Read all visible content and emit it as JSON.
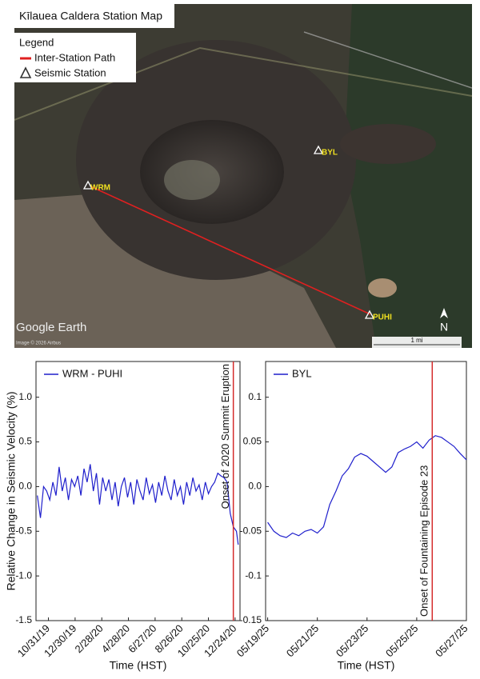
{
  "map": {
    "title": "Kīlauea Caldera Station Map",
    "legend_title": "Legend",
    "legend_items": [
      "Inter-Station Path",
      "Seismic Station"
    ],
    "stations": [
      "WRM",
      "BYL",
      "PUHI"
    ],
    "watermark": "Google Earth",
    "credit": "Image © 2026 Airbus",
    "scale": "1 mi",
    "north": "N"
  },
  "chart_data": [
    {
      "type": "line",
      "ylabel": "Relative Change in Seismic Velocity (%)",
      "xlabel": "Time (HST)",
      "x": [
        "2019-10-06",
        "2019-10-13",
        "2019-10-20",
        "2019-10-27",
        "2019-11-03",
        "2019-11-10",
        "2019-11-17",
        "2019-11-24",
        "2019-12-01",
        "2019-12-08",
        "2019-12-15",
        "2019-12-22",
        "2019-12-29",
        "2020-01-05",
        "2020-01-12",
        "2020-01-19",
        "2020-01-26",
        "2020-02-02",
        "2020-02-09",
        "2020-02-16",
        "2020-02-23",
        "2020-03-01",
        "2020-03-08",
        "2020-03-15",
        "2020-03-22",
        "2020-03-29",
        "2020-04-05",
        "2020-04-12",
        "2020-04-19",
        "2020-04-26",
        "2020-05-03",
        "2020-05-10",
        "2020-05-17",
        "2020-05-24",
        "2020-05-31",
        "2020-06-07",
        "2020-06-14",
        "2020-06-21",
        "2020-06-28",
        "2020-07-05",
        "2020-07-12",
        "2020-07-19",
        "2020-07-26",
        "2020-08-02",
        "2020-08-09",
        "2020-08-16",
        "2020-08-23",
        "2020-08-30",
        "2020-09-06",
        "2020-09-13",
        "2020-09-20",
        "2020-09-27",
        "2020-10-04",
        "2020-10-11",
        "2020-10-18",
        "2020-10-25",
        "2020-11-01",
        "2020-11-08",
        "2020-11-15",
        "2020-11-22",
        "2020-11-29",
        "2020-12-06",
        "2020-12-13",
        "2020-12-20",
        "2020-12-27",
        "2020-12-31"
      ],
      "series": [
        {
          "name": "WRM - PUHI",
          "color": "#1f1fcc",
          "values": [
            -0.1,
            -0.35,
            0,
            -0.05,
            -0.15,
            0.05,
            -0.1,
            0.22,
            -0.05,
            0.1,
            -0.15,
            0.08,
            0,
            0.12,
            -0.1,
            0.2,
            0.05,
            0.25,
            -0.05,
            0.15,
            -0.2,
            0.1,
            -0.05,
            0.08,
            -0.15,
            0.05,
            -0.22,
            0,
            0.1,
            -0.12,
            0.05,
            -0.2,
            0.08,
            -0.05,
            -0.15,
            0.1,
            -0.08,
            0.02,
            -0.18,
            0.05,
            -0.1,
            0.12,
            -0.05,
            -0.15,
            0.08,
            -0.1,
            0,
            -0.2,
            0.05,
            -0.1,
            0.1,
            -0.05,
            0.02,
            -0.15,
            0.05,
            -0.08,
            0,
            0.05,
            0.15,
            0.12,
            0.1,
            0.05,
            -0.3,
            -0.45,
            -0.5,
            -0.65
          ]
        }
      ],
      "xlim": [
        "2019-10-03",
        "2021-01-04"
      ],
      "xticks": [
        {
          "value": "2019-10-31",
          "label": "10/31/19"
        },
        {
          "value": "2019-12-30",
          "label": "12/30/19"
        },
        {
          "value": "2020-02-28",
          "label": "2/28/20"
        },
        {
          "value": "2020-04-28",
          "label": "4/28/20"
        },
        {
          "value": "2020-06-27",
          "label": "6/27/20"
        },
        {
          "value": "2020-08-26",
          "label": "8/26/20"
        },
        {
          "value": "2020-10-25",
          "label": "10/25/20"
        },
        {
          "value": "2020-12-24",
          "label": "12/24/20"
        }
      ],
      "ylim": [
        -1.5,
        1.4
      ],
      "yticks": [
        {
          "value": 1,
          "label": "1.0"
        },
        0.5,
        {
          "value": 0,
          "label": "0.0"
        },
        -0.5,
        {
          "value": -1,
          "label": "-1.0"
        },
        -1.5
      ],
      "annotation": {
        "x": "2020-12-20",
        "text": "Onset of 2020 Summit Eruption",
        "color": "#d42a2a"
      }
    },
    {
      "type": "line",
      "xlabel": "Time (HST)",
      "x": [
        "2025-05-19T00:00",
        "2025-05-19T06:00",
        "2025-05-19T12:00",
        "2025-05-19T18:00",
        "2025-05-20T00:00",
        "2025-05-20T06:00",
        "2025-05-20T12:00",
        "2025-05-20T18:00",
        "2025-05-21T00:00",
        "2025-05-21T06:00",
        "2025-05-21T12:00",
        "2025-05-21T18:00",
        "2025-05-22T00:00",
        "2025-05-22T06:00",
        "2025-05-22T12:00",
        "2025-05-22T18:00",
        "2025-05-23T00:00",
        "2025-05-23T06:00",
        "2025-05-23T12:00",
        "2025-05-23T18:00",
        "2025-05-24T00:00",
        "2025-05-24T06:00",
        "2025-05-24T12:00",
        "2025-05-24T18:00",
        "2025-05-25T00:00",
        "2025-05-25T06:00",
        "2025-05-25T12:00",
        "2025-05-25T18:00",
        "2025-05-26T00:00",
        "2025-05-26T06:00",
        "2025-05-26T12:00",
        "2025-05-26T18:00",
        "2025-05-27T00:00"
      ],
      "series": [
        {
          "name": "BYL",
          "color": "#1f1fcc",
          "values": [
            -0.04,
            -0.05,
            -0.055,
            -0.057,
            -0.052,
            -0.055,
            -0.05,
            -0.048,
            -0.052,
            -0.045,
            -0.02,
            -0.005,
            0.012,
            0.02,
            0.033,
            0.037,
            0.034,
            0.028,
            0.022,
            0.016,
            0.022,
            0.038,
            0.042,
            0.045,
            0.05,
            0.043,
            0.052,
            0.057,
            0.055,
            0.05,
            0.045,
            0.037,
            0.03
          ]
        }
      ],
      "xlim": [
        "2025-05-18T22:00",
        "2025-05-27T00:00"
      ],
      "xticks": [
        {
          "value": "2025-05-19T00:00",
          "label": "05/19/25"
        },
        {
          "value": "2025-05-21T00:00",
          "label": "05/21/25"
        },
        {
          "value": "2025-05-23T00:00",
          "label": "05/23/25"
        },
        {
          "value": "2025-05-25T00:00",
          "label": "05/25/25"
        },
        {
          "value": "2025-05-27T00:00",
          "label": "05/27/25"
        }
      ],
      "ylim": [
        -0.15,
        0.14
      ],
      "yticks": [
        0.1,
        0.05,
        {
          "value": 0,
          "label": "0.0"
        },
        -0.05,
        -0.1,
        -0.15
      ],
      "annotation": {
        "x": "2025-05-25T15:00",
        "text": "Onset of Fountaining Episode 23",
        "color": "#d42a2a"
      }
    }
  ]
}
